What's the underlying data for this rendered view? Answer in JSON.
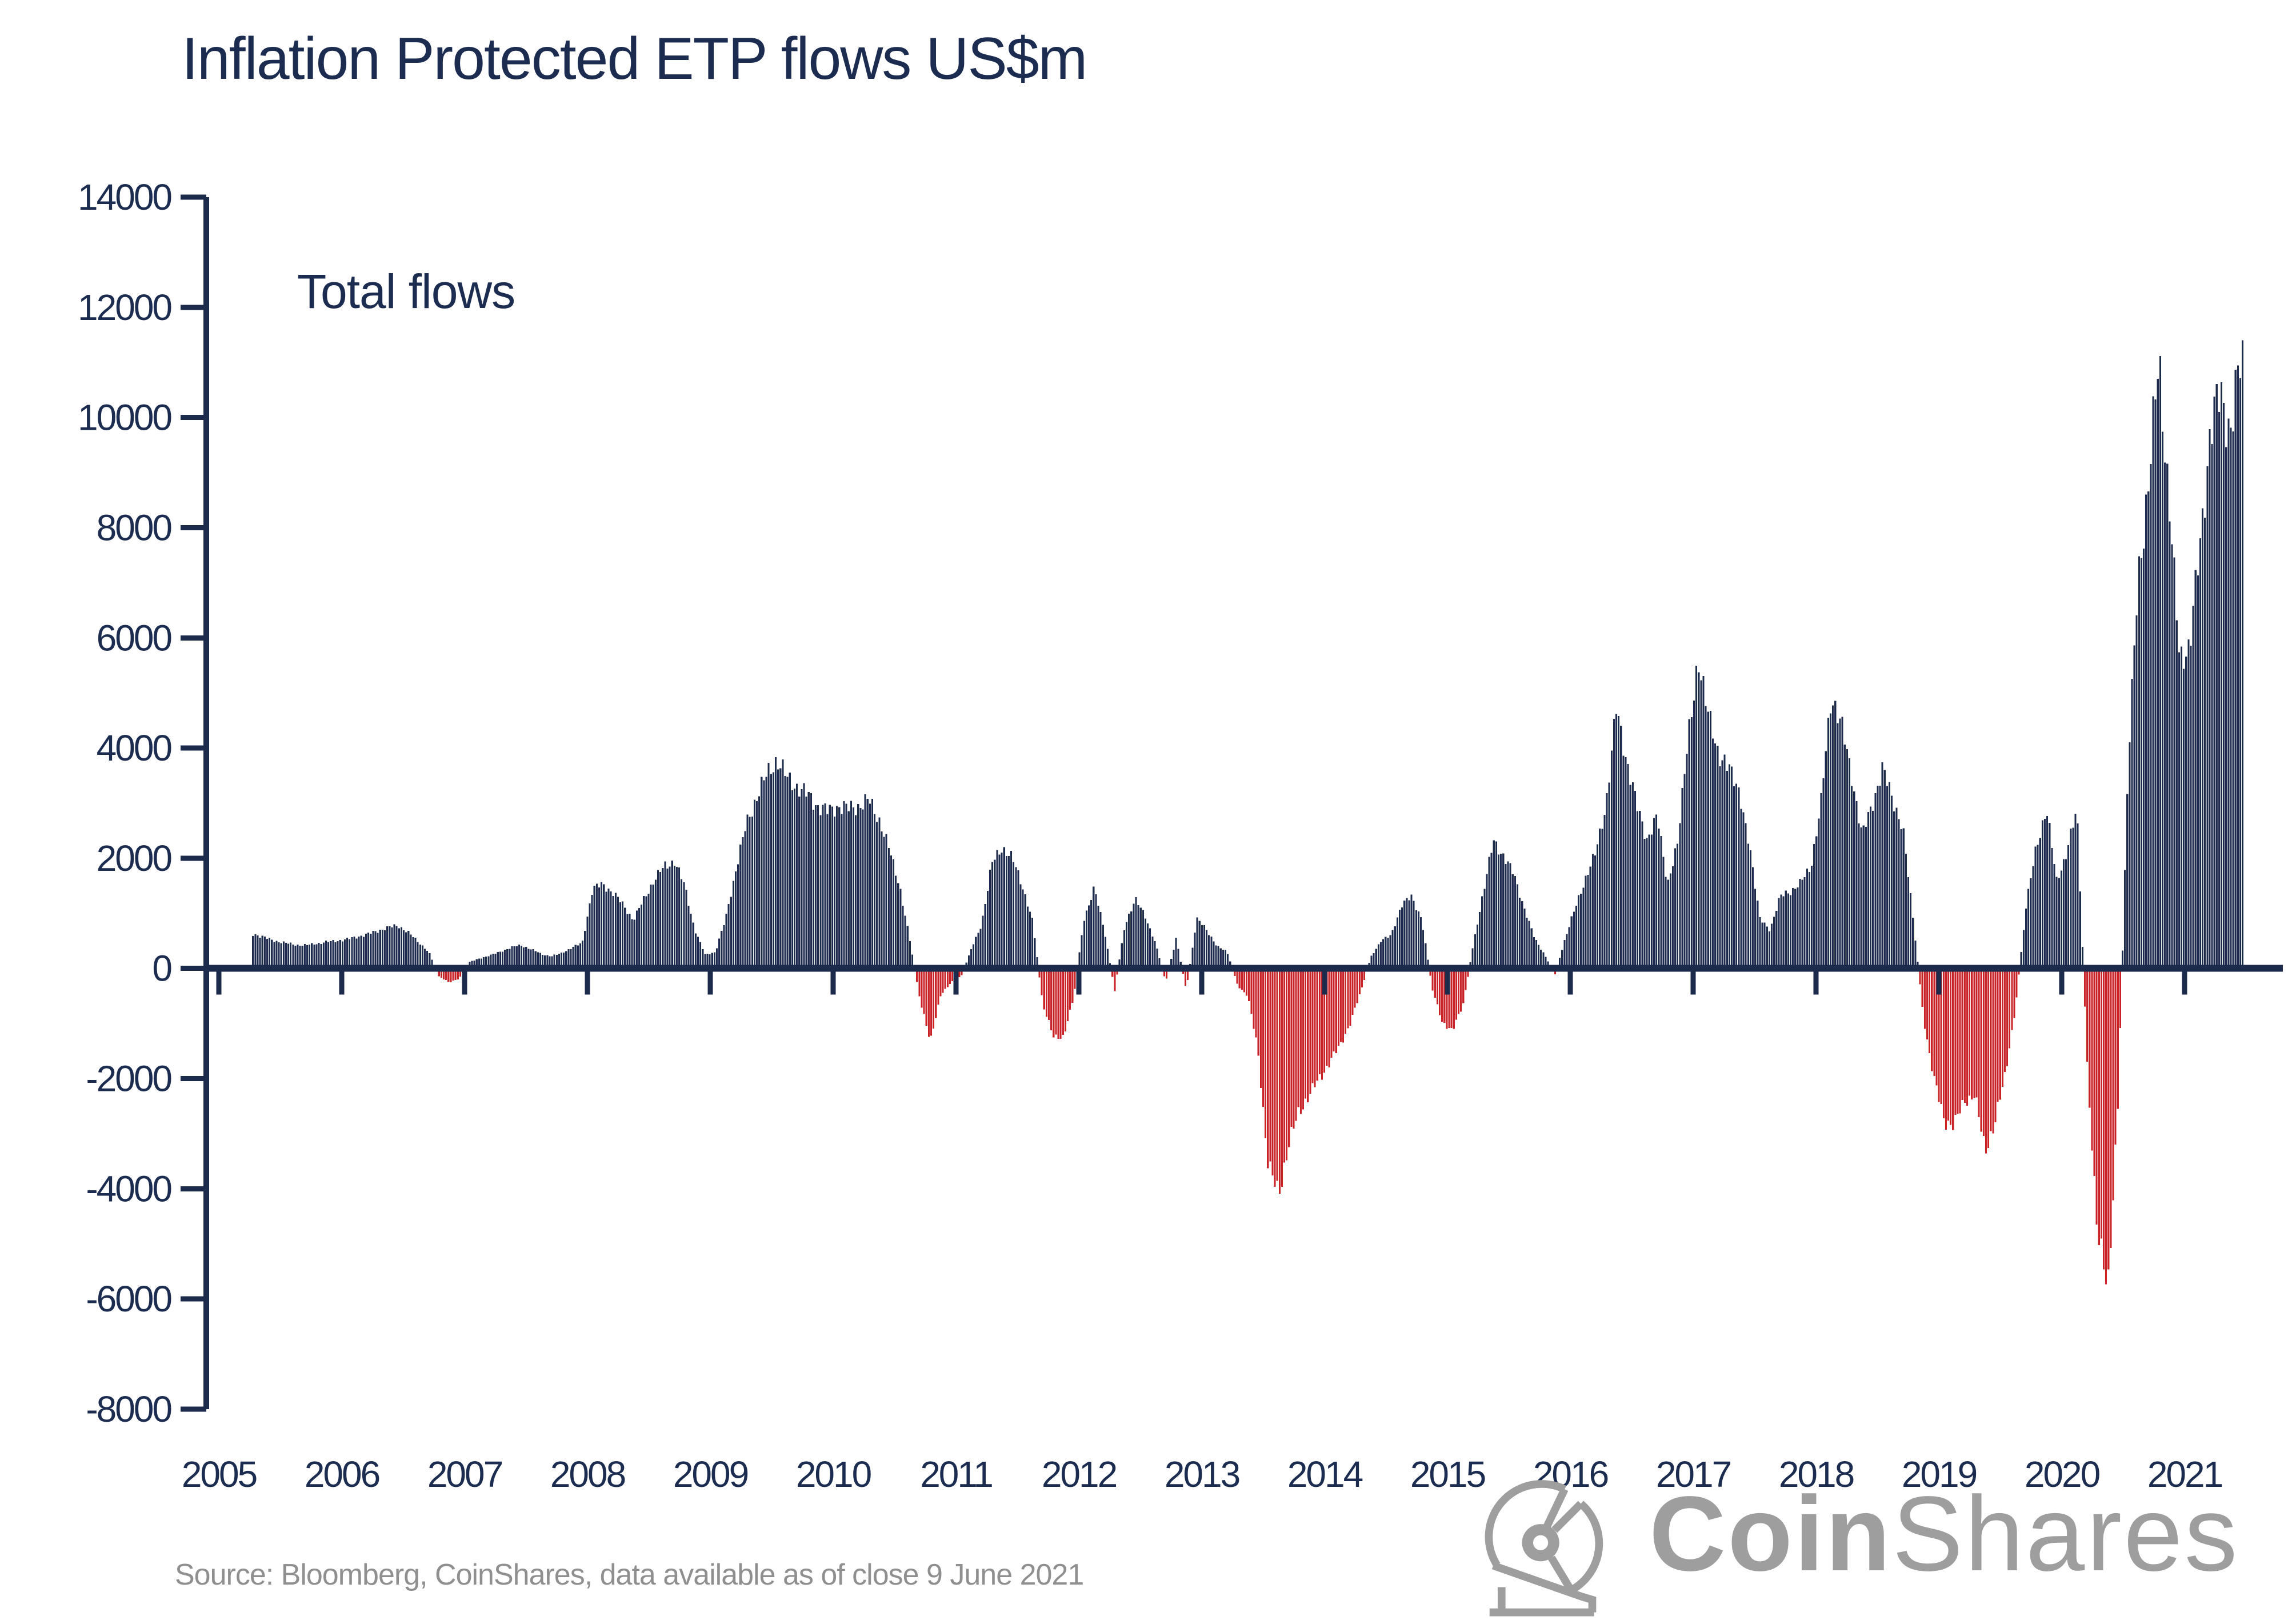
{
  "title": "Inflation Protected ETP flows US$m",
  "annotation": "Total flows",
  "source": "Source: Bloomberg, CoinShares, data available as of close 9 June 2021",
  "logo": {
    "brand_bold": "Coin",
    "brand_light": "Shares"
  },
  "colors": {
    "positive": "#1c2a4c",
    "negative": "#ca2127",
    "axis": "#1c2a4c",
    "navy_text": "#1c2c50",
    "gray_text": "#8f8f8f",
    "logo_gray": "#9e9e9e"
  },
  "chart_data": {
    "type": "bar",
    "title": "Inflation Protected ETP flows US$m",
    "series_label": "Total flows",
    "unit": "US$m",
    "frequency": "weekly bars; values below are estimated monthly levels read from the chart",
    "grid": false,
    "legend": "none",
    "ylim": [
      -8000,
      14000
    ],
    "ytick_step": 2000,
    "y_ticks": [
      14000,
      12000,
      10000,
      8000,
      6000,
      4000,
      2000,
      0,
      -2000,
      -4000,
      -6000,
      -8000
    ],
    "x_years": [
      2005,
      2006,
      2007,
      2008,
      2009,
      2010,
      2011,
      2012,
      2013,
      2014,
      2015,
      2016,
      2017,
      2018,
      2019,
      2020,
      2021
    ],
    "x_range": [
      2005.27,
      2021.47
    ],
    "monthly_flows": [
      {
        "year": 2005,
        "values": [
          null,
          null,
          null,
          620,
          560,
          500,
          460,
          430,
          420,
          450,
          480,
          500
        ]
      },
      {
        "year": 2006,
        "values": [
          530,
          570,
          620,
          680,
          740,
          780,
          650,
          480,
          300,
          -150,
          -250,
          -180
        ]
      },
      {
        "year": 2007,
        "values": [
          120,
          180,
          240,
          300,
          380,
          420,
          350,
          260,
          220,
          280,
          380,
          460
        ]
      },
      {
        "year": 2008,
        "values": [
          1450,
          1520,
          1380,
          1150,
          880,
          1250,
          1600,
          1850,
          1950,
          1500,
          700,
          250
        ]
      },
      {
        "year": 2009,
        "values": [
          300,
          900,
          1800,
          2600,
          3100,
          3500,
          3800,
          3450,
          3300,
          3150,
          2950,
          2850
        ]
      },
      {
        "year": 2010,
        "values": [
          2950,
          2900,
          2950,
          3050,
          2700,
          2150,
          1500,
          500,
          -600,
          -1300,
          -500,
          -250
        ]
      },
      {
        "year": 2011,
        "values": [
          -150,
          350,
          800,
          1900,
          2200,
          2000,
          1500,
          850,
          -700,
          -1200,
          -1280,
          -500
        ]
      },
      {
        "year": 2012,
        "values": [
          900,
          1450,
          700,
          -400,
          800,
          1250,
          950,
          450,
          -250,
          550,
          -400,
          900
        ]
      },
      {
        "year": 2013,
        "values": [
          700,
          400,
          300,
          -300,
          -500,
          -1500,
          -3600,
          -4100,
          -3200,
          -2600,
          -2300,
          -2000
        ]
      },
      {
        "year": 2014,
        "values": [
          -1700,
          -1400,
          -1000,
          -450,
          200,
          500,
          600,
          1150,
          1300,
          900,
          -350,
          -1000
        ]
      },
      {
        "year": 2015,
        "values": [
          -1100,
          -700,
          400,
          1400,
          2300,
          2050,
          1700,
          1100,
          550,
          250,
          -120,
          550
        ]
      },
      {
        "year": 2016,
        "values": [
          1100,
          1650,
          2100,
          3000,
          4700,
          3800,
          2950,
          2350,
          2750,
          1550,
          2250,
          4300
        ]
      },
      {
        "year": 2017,
        "values": [
          5400,
          4800,
          3700,
          3800,
          3100,
          2300,
          900,
          700,
          1300,
          1400,
          1550,
          1850
        ]
      },
      {
        "year": 2018,
        "values": [
          3000,
          5000,
          4400,
          3500,
          2400,
          3000,
          3600,
          3100,
          2500,
          900,
          -900,
          -2000
        ]
      },
      {
        "year": 2019,
        "values": [
          -2750,
          -2850,
          -2400,
          -2300,
          -3300,
          -2800,
          -1900,
          -700,
          1100,
          2200,
          2900,
          1600
        ]
      },
      {
        "year": 2020,
        "values": [
          2100,
          2900,
          -1800,
          -4800,
          -5900,
          -2400,
          3800,
          7100,
          8900,
          11000,
          8500,
          5600
        ]
      },
      {
        "year": 2021,
        "values": [
          5900,
          7600,
          9800,
          10400,
          9800,
          11000,
          null,
          null,
          null,
          null,
          null,
          null
        ]
      }
    ]
  }
}
